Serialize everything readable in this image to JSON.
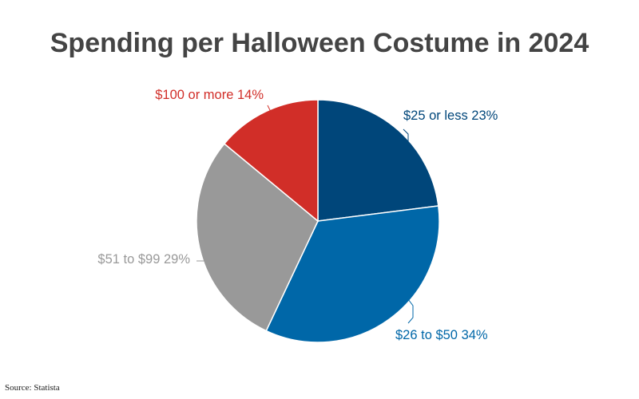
{
  "chart_data": {
    "type": "pie",
    "title": "Spending per Halloween Costume in 2024",
    "unit": "%",
    "slices": [
      {
        "label": "$25 or less",
        "value": 23,
        "color": "#00467a"
      },
      {
        "label": "$26 to $50",
        "value": 34,
        "color": "#0067a8"
      },
      {
        "label": "$51 to $99",
        "value": 29,
        "color": "#999999"
      },
      {
        "label": "$100 or more",
        "value": 14,
        "color": "#d12e28"
      }
    ],
    "legend": "none"
  },
  "source": "Source: Statista"
}
